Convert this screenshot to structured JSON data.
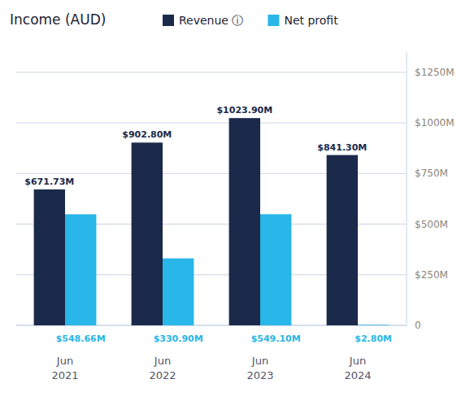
{
  "chart_data": {
    "type": "bar",
    "title": "Income (AUD)",
    "categories": [
      "Jun\n2021",
      "Jun\n2022",
      "Jun\n2023",
      "Jun\n2024"
    ],
    "series": [
      {
        "name": "Revenue ⓘ",
        "color": "#1b2a4a",
        "values": [
          671.73,
          902.8,
          1023.9,
          841.3
        ],
        "value_labels": [
          "$671.73M",
          "$902.80M",
          "$1023.90M",
          "$841.30M"
        ]
      },
      {
        "name": "Net profit",
        "color": "#29b6e8",
        "values": [
          548.66,
          330.9,
          549.1,
          2.8
        ],
        "value_labels": [
          "$548.66M",
          "$330.90M",
          "$549.10M",
          "$2.80M"
        ]
      }
    ],
    "ylim": [
      0,
      1350
    ],
    "yticks": [
      0,
      {
        "value": 250,
        "label": "$250M"
      },
      {
        "value": 500,
        "label": "$500M"
      },
      {
        "value": 750,
        "label": "$750M"
      },
      {
        "value": 1000,
        "label": "$1000M"
      },
      {
        "value": 1250,
        "label": "$1250M"
      }
    ],
    "grid": true,
    "legend": "top",
    "data_labels": true
  }
}
